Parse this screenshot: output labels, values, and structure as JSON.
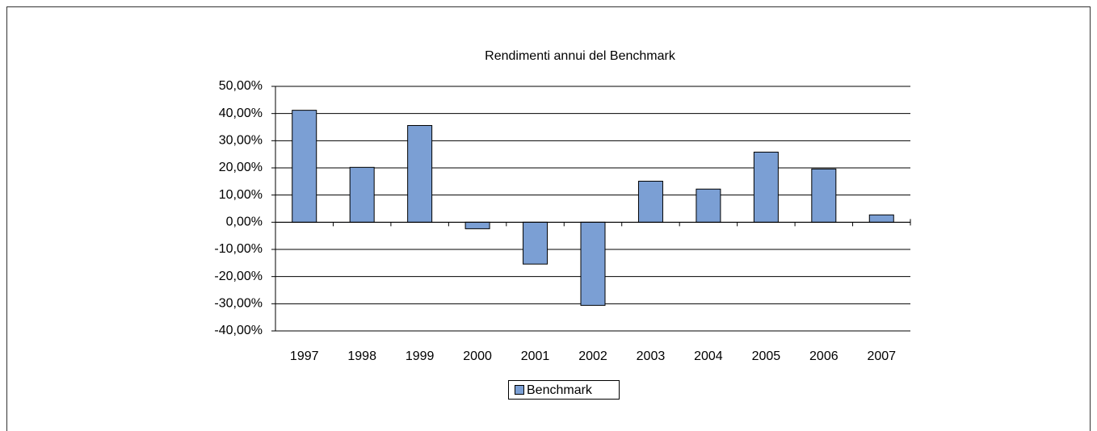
{
  "chart_data": {
    "type": "bar",
    "title": "Rendimenti annui del Benchmark",
    "categories": [
      "1997",
      "1998",
      "1999",
      "2000",
      "2001",
      "2002",
      "2003",
      "2004",
      "2005",
      "2006",
      "2007"
    ],
    "series": [
      {
        "name": "Benchmark",
        "color": "#7b9fd4",
        "values": [
          41.2,
          20.2,
          35.6,
          -2.4,
          -15.4,
          -30.6,
          15.1,
          12.2,
          25.8,
          19.6,
          2.7
        ]
      }
    ],
    "ylim": [
      -40,
      50
    ],
    "yticks": [
      {
        "value": -40,
        "label": "-40,00%"
      },
      {
        "value": -30,
        "label": "-30,00%"
      },
      {
        "value": -20,
        "label": "-20,00%"
      },
      {
        "value": -10,
        "label": "-10,00%"
      },
      {
        "value": 0,
        "label": "0,00%"
      },
      {
        "value": 10,
        "label": "10,00%"
      },
      {
        "value": 20,
        "label": "20,00%"
      },
      {
        "value": 30,
        "label": "30,00%"
      },
      {
        "value": 40,
        "label": "40,00%"
      },
      {
        "value": 50,
        "label": "50,00%"
      }
    ],
    "grid": true,
    "legend": "bottom"
  }
}
